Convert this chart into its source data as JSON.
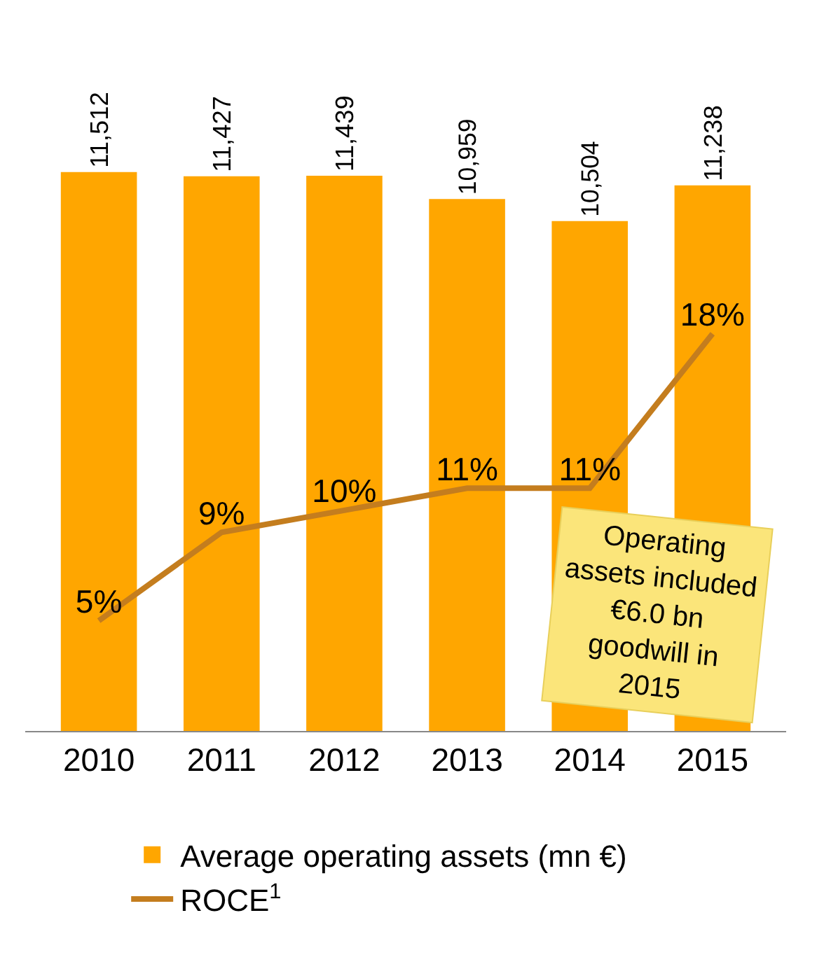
{
  "chart_data": {
    "type": "bar",
    "categories": [
      "2010",
      "2011",
      "2012",
      "2013",
      "2014",
      "2015"
    ],
    "series": [
      {
        "name": "Average operating assets (mn €)",
        "color": "#ffa600",
        "values": [
          11512,
          11427,
          11439,
          10959,
          10504,
          11238
        ],
        "value_labels": [
          "11,512",
          "11,427",
          "11,439",
          "10,959",
          "10,504",
          "11,238"
        ]
      },
      {
        "name": "ROCE$^{1}$",
        "type": "line",
        "axis": "y2",
        "color": "#c47d1e",
        "values": [
          5,
          9,
          10,
          11,
          11,
          18
        ],
        "value_labels": [
          "5%",
          "9%",
          "10%",
          "11%",
          "11%",
          "18%"
        ]
      }
    ],
    "ylim": [
      0,
      15000
    ],
    "y2lim": [
      0,
      33
    ],
    "tick_labels": "x",
    "grid": false,
    "legend": "bottom",
    "marker": "none",
    "line_style": "solid",
    "annotations": [
      "Operating assets included €6.0 bn goodwill in 2015"
    ]
  }
}
